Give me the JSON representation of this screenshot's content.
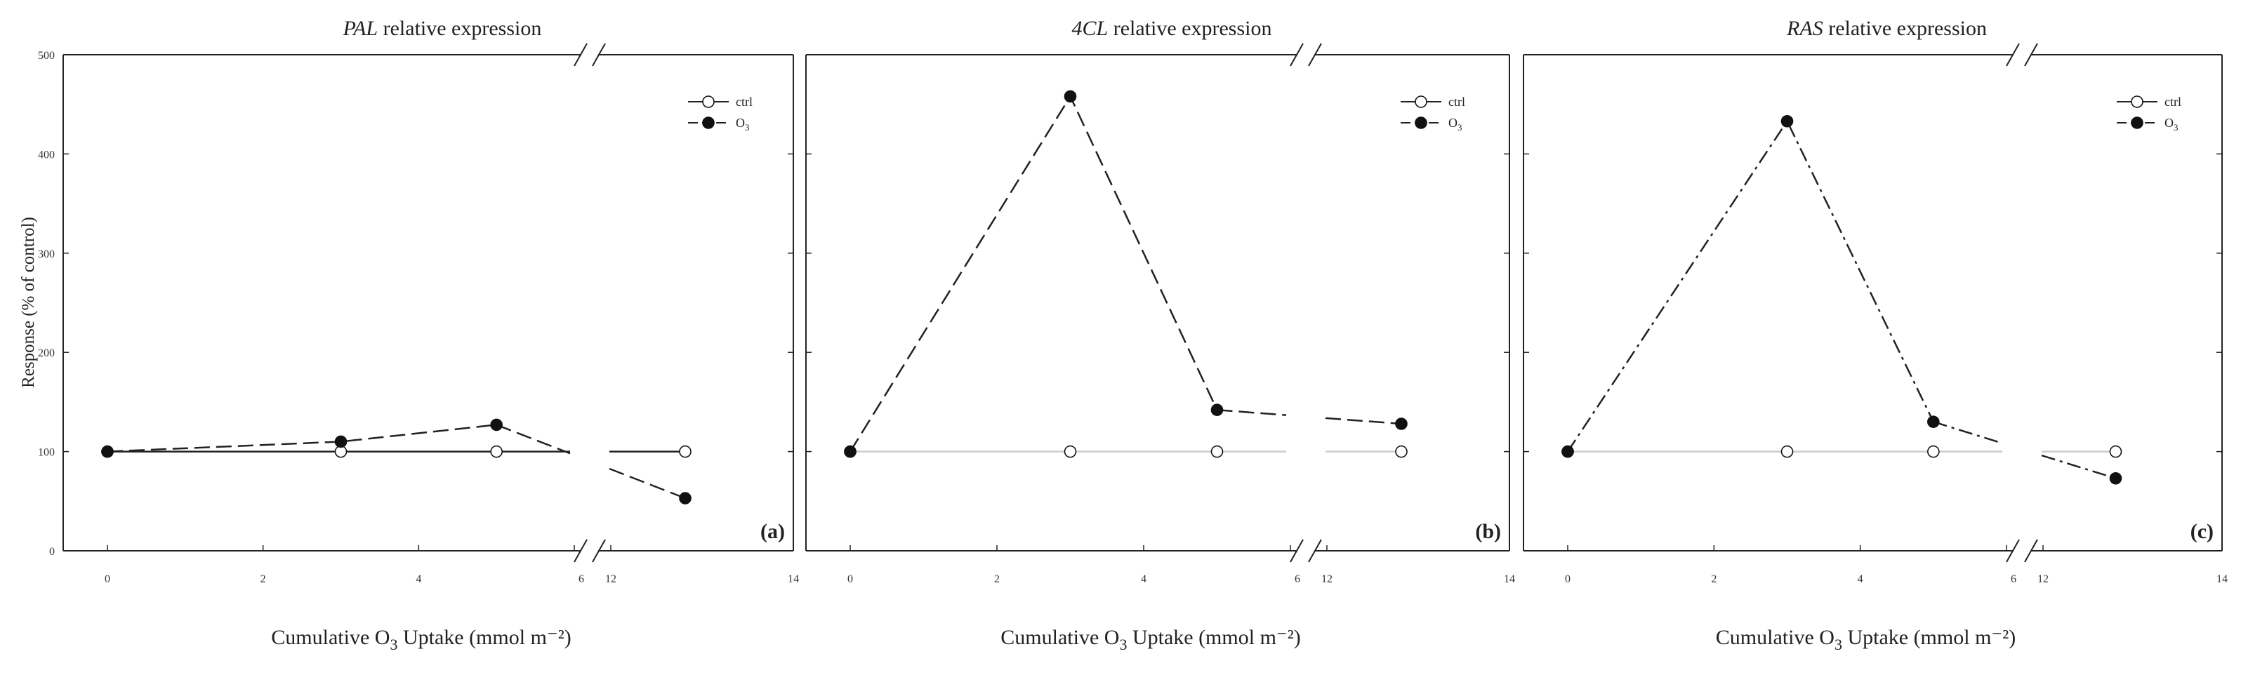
{
  "figure": {
    "ylabel": "Response (% of control)",
    "xlabel_parts": {
      "pre": "Cumulative O",
      "sub": "3",
      "post": " Uptake (mmol m⁻²)"
    }
  },
  "chart_data": [
    {
      "type": "line",
      "gene": "PAL",
      "title_rest": " relative expression",
      "panel_label": "(a)",
      "ylim": [
        0,
        500
      ],
      "yticks": [
        0,
        100,
        200,
        300,
        400,
        500
      ],
      "xticks_left": [
        0,
        2,
        4,
        6
      ],
      "xticks_right": [
        12,
        14
      ],
      "x_break": {
        "left_range": [
          -1,
          6
        ],
        "right_range": [
          12,
          14
        ]
      },
      "legend": [
        {
          "label": "ctrl",
          "marker": "open"
        },
        {
          "label": "O3",
          "label_main": "O",
          "label_sub": "3",
          "marker": "filled"
        }
      ],
      "series": [
        {
          "name": "ctrl",
          "marker": "open",
          "style": "solid",
          "color": "#222222",
          "x": [
            0,
            3,
            5,
            13
          ],
          "y": [
            100,
            100,
            100,
            100
          ]
        },
        {
          "name": "O3",
          "marker": "filled",
          "style": "dash",
          "color": "#222222",
          "x": [
            0,
            3,
            5,
            13
          ],
          "y": [
            100,
            110,
            127,
            53
          ]
        }
      ]
    },
    {
      "type": "line",
      "gene": "4CL",
      "title_rest": " relative expression",
      "panel_label": "(b)",
      "ylim": [
        0,
        500
      ],
      "yticks": [
        0,
        100,
        200,
        300,
        400,
        500
      ],
      "xticks_left": [
        0,
        2,
        4,
        6
      ],
      "xticks_right": [
        12,
        14
      ],
      "x_break": {
        "left_range": [
          -1,
          6
        ],
        "right_range": [
          12,
          14
        ]
      },
      "legend": [
        {
          "label": "ctrl",
          "marker": "open"
        },
        {
          "label": "O3",
          "label_main": "O",
          "label_sub": "3",
          "marker": "filled"
        }
      ],
      "series": [
        {
          "name": "ctrl",
          "marker": "open",
          "style": "solid",
          "color": "#cccccc",
          "x": [
            0,
            3,
            5,
            13
          ],
          "y": [
            100,
            100,
            100,
            100
          ]
        },
        {
          "name": "O3",
          "marker": "filled",
          "style": "dash",
          "color": "#222222",
          "x": [
            0,
            3,
            5,
            13
          ],
          "y": [
            100,
            458,
            142,
            128
          ]
        }
      ]
    },
    {
      "type": "line",
      "gene": "RAS",
      "title_rest": " relative expression",
      "panel_label": "(c)",
      "ylim": [
        0,
        500
      ],
      "yticks": [
        0,
        100,
        200,
        300,
        400,
        500
      ],
      "xticks_left": [
        0,
        2,
        4,
        6
      ],
      "xticks_right": [
        12,
        14
      ],
      "x_break": {
        "left_range": [
          -1,
          6
        ],
        "right_range": [
          12,
          14
        ]
      },
      "legend": [
        {
          "label": "ctrl",
          "marker": "open"
        },
        {
          "label": "O3",
          "label_main": "O",
          "label_sub": "3",
          "marker": "filled"
        }
      ],
      "series": [
        {
          "name": "ctrl",
          "marker": "open",
          "style": "solid",
          "color": "#cccccc",
          "x": [
            0,
            3,
            5,
            13
          ],
          "y": [
            100,
            100,
            100,
            100
          ]
        },
        {
          "name": "O3",
          "marker": "filled",
          "style": "dashdot",
          "color": "#222222",
          "x": [
            0,
            3,
            5,
            13
          ],
          "y": [
            100,
            433,
            130,
            73
          ]
        }
      ]
    }
  ]
}
